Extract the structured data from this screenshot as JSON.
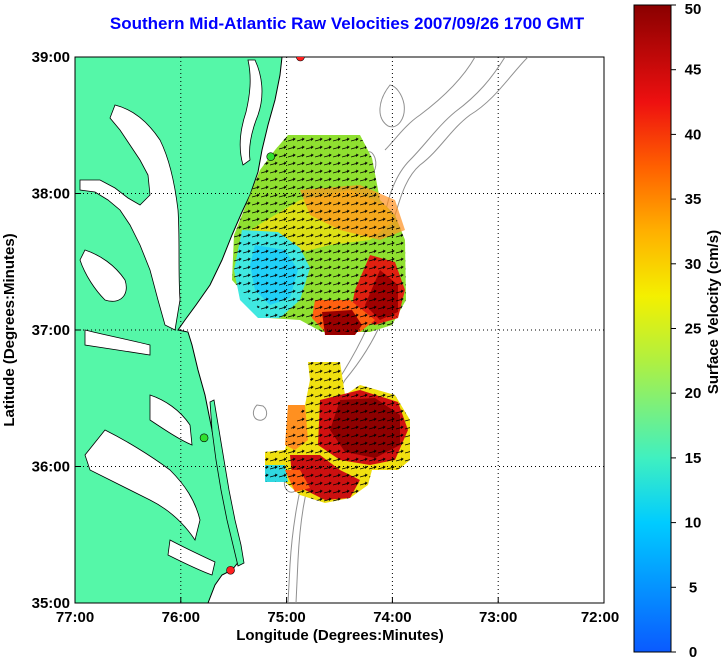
{
  "title": "Southern Mid-Atlantic Raw Velocities 2007/09/26 1700 GMT",
  "axes": {
    "xlabel": "Longitude (Degrees:Minutes)",
    "ylabel": "Latitude (Degrees:Minutes)",
    "x_ticks": [
      "77:00",
      "76:00",
      "75:00",
      "74:00",
      "73:00",
      "72:00"
    ],
    "y_ticks": [
      "39:00",
      "38:00",
      "37:00",
      "36:00",
      "35:00"
    ]
  },
  "colorbar": {
    "label": "Surface Velocity (cm/s)",
    "ticks": [
      "50",
      "45",
      "40",
      "35",
      "30",
      "25",
      "20",
      "15",
      "10",
      "5",
      "0"
    ],
    "range": [
      0,
      50
    ]
  },
  "colors": {
    "land": "#55f7a8",
    "water": "#ffffff",
    "coast": "#000000",
    "title": "#0000ff",
    "bathymetry": "#909090",
    "station": "#ff2020",
    "station_alt": "#30e030"
  },
  "stations": [
    {
      "lon": -74.87,
      "lat": 39.0,
      "color": "station"
    },
    {
      "lon": -75.15,
      "lat": 38.27,
      "color": "station_alt"
    },
    {
      "lon": -75.78,
      "lat": 36.21,
      "color": "station_alt"
    },
    {
      "lon": -75.53,
      "lat": 35.24,
      "color": "station"
    }
  ]
}
